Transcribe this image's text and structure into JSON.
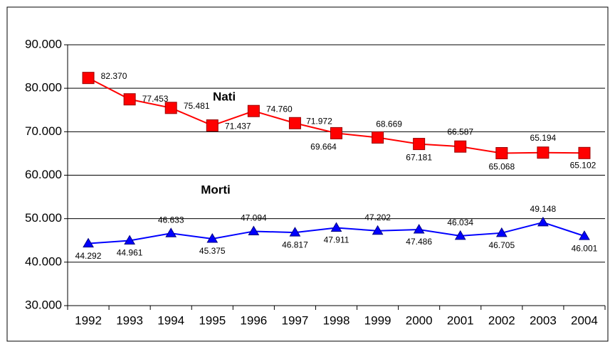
{
  "chart_data": {
    "type": "line",
    "categories": [
      "1992",
      "1993",
      "1994",
      "1995",
      "1996",
      "1997",
      "1998",
      "1999",
      "2000",
      "2001",
      "2002",
      "2003",
      "2004"
    ],
    "series": [
      {
        "name": "Nati",
        "color": "#ff0000",
        "marker": "square",
        "values": [
          82370,
          77453,
          75481,
          71437,
          74760,
          71972,
          69664,
          68669,
          67181,
          66587,
          65068,
          65194,
          65102
        ],
        "value_labels": [
          "82.370",
          "77.453",
          "75.481",
          "71.437",
          "74.760",
          "71.972",
          "69.664",
          "68.669",
          "67.181",
          "66.587",
          "65.068",
          "65.194",
          "65.102"
        ]
      },
      {
        "name": "Morti",
        "color": "#0000ff",
        "marker": "triangle",
        "values": [
          44292,
          44961,
          46633,
          45375,
          47094,
          46817,
          47911,
          47202,
          47486,
          46034,
          46705,
          49148,
          46001
        ],
        "value_labels": [
          "44.292",
          "44.961",
          "46.633",
          "45.375",
          "47.094",
          "46.817",
          "47.911",
          "47.202",
          "47.486",
          "46.034",
          "46.705",
          "49.148",
          "46.001"
        ]
      }
    ],
    "ylim": [
      30000,
      90000
    ],
    "yticks": [
      {
        "value": 30000,
        "label": "30.000"
      },
      {
        "value": 40000,
        "label": "40.000"
      },
      {
        "value": 50000,
        "label": "50.000"
      },
      {
        "value": 60000,
        "label": "60.000"
      },
      {
        "value": 70000,
        "label": "70.000"
      },
      {
        "value": 80000,
        "label": "80.000"
      },
      {
        "value": 90000,
        "label": "90.000"
      }
    ],
    "grid": true
  }
}
